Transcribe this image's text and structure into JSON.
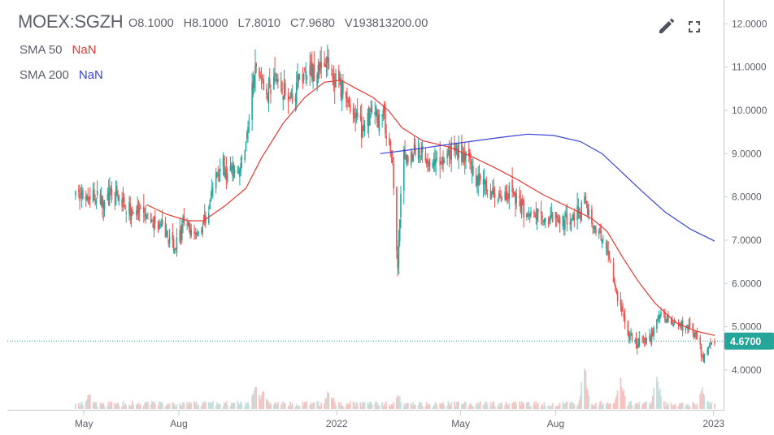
{
  "header": {
    "symbol": "MOEX:SGZH",
    "ohlcv": [
      {
        "key": "O",
        "value": "8.1000"
      },
      {
        "key": "H",
        "value": "8.1000"
      },
      {
        "key": "L",
        "value": "7.8010"
      },
      {
        "key": "C",
        "value": "7.9680"
      },
      {
        "key": "V",
        "value": "193813200.00"
      }
    ]
  },
  "indicators": [
    {
      "name": "SMA 50",
      "value": "NaN",
      "color": "#e53935"
    },
    {
      "name": "SMA 200",
      "value": "NaN",
      "color": "#3943d8"
    }
  ],
  "toolbar": {
    "edit_icon": "pencil-icon",
    "fullscreen_icon": "fullscreen-icon"
  },
  "colors": {
    "up": "#26a69a",
    "down": "#ef5350",
    "up_volume": "#c5dfdc",
    "down_volume": "#f7c3c1",
    "sma50": "#e53935",
    "sma200": "#3943d8",
    "last_price": "#26a69a",
    "axis_text": "#5d606b"
  },
  "chart_data": {
    "type": "candlestick",
    "x_axis": {
      "labels": [
        "May",
        "Aug",
        "2022",
        "May",
        "Aug",
        "2023"
      ],
      "range": [
        "2021-04-23",
        "2023-01-02"
      ]
    },
    "y_axis": {
      "labels": [
        "12.0000",
        "11.0000",
        "10.0000",
        "9.0000",
        "8.0000",
        "7.0000",
        "6.0000",
        "5.0000",
        "4.0000"
      ],
      "ylim": [
        3.1,
        12.4
      ],
      "position": "right"
    },
    "last_price": {
      "value": 4.67,
      "label": "4.6700"
    },
    "grid": false,
    "price_path": [
      [
        "2021-04-23",
        8.05
      ],
      [
        "2021-05-10",
        7.95
      ],
      [
        "2021-05-31",
        8.0
      ],
      [
        "2021-06-15",
        7.7
      ],
      [
        "2021-07-01",
        7.5
      ],
      [
        "2021-07-15",
        7.3
      ],
      [
        "2021-07-28",
        6.8
      ],
      [
        "2021-08-05",
        7.3
      ],
      [
        "2021-08-20",
        7.2
      ],
      [
        "2021-08-28",
        7.5
      ],
      [
        "2021-09-08",
        8.7
      ],
      [
        "2021-09-20",
        8.6
      ],
      [
        "2021-09-30",
        8.7
      ],
      [
        "2021-10-06",
        9.4
      ],
      [
        "2021-10-15",
        11.1
      ],
      [
        "2021-10-25",
        10.3
      ],
      [
        "2021-11-05",
        10.8
      ],
      [
        "2021-11-15",
        10.2
      ],
      [
        "2021-11-28",
        10.8
      ],
      [
        "2021-12-10",
        10.9
      ],
      [
        "2021-12-20",
        11.1
      ],
      [
        "2021-12-31",
        10.7
      ],
      [
        "2022-01-12",
        10.2
      ],
      [
        "2022-01-25",
        9.6
      ],
      [
        "2022-02-05",
        10.0
      ],
      [
        "2022-02-15",
        9.8
      ],
      [
        "2022-02-24",
        8.8
      ],
      [
        "2022-03-01",
        6.2
      ],
      [
        "2022-03-05",
        8.8
      ],
      [
        "2022-03-20",
        9.1
      ],
      [
        "2022-04-05",
        8.7
      ],
      [
        "2022-04-25",
        9.1
      ],
      [
        "2022-05-10",
        8.8
      ],
      [
        "2022-05-20",
        8.3
      ],
      [
        "2022-06-05",
        8.0
      ],
      [
        "2022-06-20",
        8.1
      ],
      [
        "2022-07-05",
        7.6
      ],
      [
        "2022-07-25",
        7.5
      ],
      [
        "2022-08-10",
        7.5
      ],
      [
        "2022-08-25",
        7.6
      ],
      [
        "2022-08-29",
        8.0
      ],
      [
        "2022-09-05",
        7.3
      ],
      [
        "2022-09-20",
        6.9
      ],
      [
        "2022-09-26",
        6.0
      ],
      [
        "2022-10-03",
        5.4
      ],
      [
        "2022-10-10",
        4.8
      ],
      [
        "2022-10-20",
        4.6
      ],
      [
        "2022-11-01",
        4.8
      ],
      [
        "2022-11-10",
        5.3
      ],
      [
        "2022-11-20",
        5.1
      ],
      [
        "2022-12-05",
        5.0
      ],
      [
        "2022-12-15",
        4.8
      ],
      [
        "2022-12-22",
        4.3
      ],
      [
        "2022-12-28",
        4.55
      ],
      [
        "2023-01-02",
        4.67
      ]
    ],
    "series": [
      {
        "name": "SMA 50",
        "color": "#e53935",
        "points": [
          [
            "2021-07-01",
            7.82
          ],
          [
            "2021-07-20",
            7.6
          ],
          [
            "2021-08-10",
            7.45
          ],
          [
            "2021-08-25",
            7.45
          ],
          [
            "2021-09-15",
            7.8
          ],
          [
            "2021-10-05",
            8.2
          ],
          [
            "2021-10-20",
            8.9
          ],
          [
            "2021-11-10",
            9.7
          ],
          [
            "2021-12-01",
            10.3
          ],
          [
            "2021-12-20",
            10.65
          ],
          [
            "2022-01-05",
            10.7
          ],
          [
            "2022-01-20",
            10.5
          ],
          [
            "2022-02-05",
            10.3
          ],
          [
            "2022-02-20",
            10.0
          ],
          [
            "2022-03-05",
            9.6
          ],
          [
            "2022-03-25",
            9.3
          ],
          [
            "2022-04-20",
            9.15
          ],
          [
            "2022-05-10",
            8.95
          ],
          [
            "2022-06-01",
            8.7
          ],
          [
            "2022-06-25",
            8.4
          ],
          [
            "2022-07-20",
            8.05
          ],
          [
            "2022-08-15",
            7.75
          ],
          [
            "2022-09-05",
            7.5
          ],
          [
            "2022-09-20",
            7.2
          ],
          [
            "2022-10-05",
            6.6
          ],
          [
            "2022-10-20",
            6.05
          ],
          [
            "2022-11-05",
            5.55
          ],
          [
            "2022-11-25",
            5.1
          ],
          [
            "2022-12-15",
            4.9
          ],
          [
            "2023-01-02",
            4.8
          ]
        ]
      },
      {
        "name": "SMA 200",
        "color": "#3943d8",
        "points": [
          [
            "2022-02-12",
            9.0
          ],
          [
            "2022-03-10",
            9.08
          ],
          [
            "2022-04-10",
            9.18
          ],
          [
            "2022-05-10",
            9.28
          ],
          [
            "2022-06-10",
            9.38
          ],
          [
            "2022-07-05",
            9.45
          ],
          [
            "2022-07-30",
            9.42
          ],
          [
            "2022-08-25",
            9.28
          ],
          [
            "2022-09-15",
            9.0
          ],
          [
            "2022-10-05",
            8.55
          ],
          [
            "2022-10-25",
            8.1
          ],
          [
            "2022-11-15",
            7.65
          ],
          [
            "2022-12-10",
            7.25
          ],
          [
            "2023-01-02",
            6.98
          ]
        ]
      }
    ],
    "volume_spikes": [
      [
        "2021-05-06",
        0.45
      ],
      [
        "2021-10-14",
        0.75
      ],
      [
        "2021-10-22",
        0.6
      ],
      [
        "2021-12-25",
        0.55
      ],
      [
        "2022-03-01",
        0.4
      ],
      [
        "2022-08-29",
        1.0
      ],
      [
        "2022-10-03",
        0.8
      ],
      [
        "2022-11-07",
        0.85
      ],
      [
        "2022-12-22",
        0.55
      ]
    ]
  }
}
